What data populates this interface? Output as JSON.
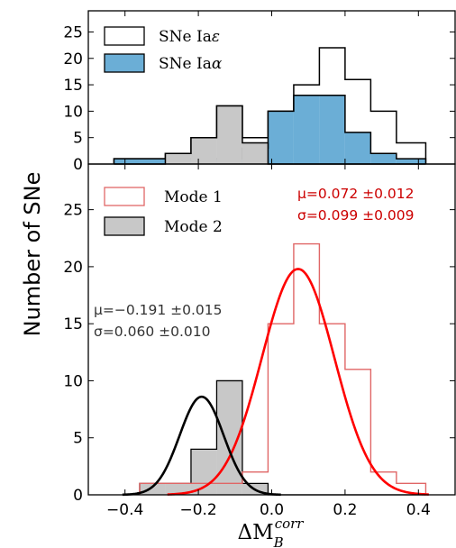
{
  "ylabel": "Number of SNe",
  "xlabel": {
    "delta": "ΔM",
    "subscript": "B",
    "superscript": "corr"
  },
  "colors": {
    "blue_fill": "#6baed6",
    "gray_fill": "#c8c8c8",
    "mode1_step": "#e06666",
    "mode1_gauss": "#ff0000",
    "mode1_text": "#cc0000",
    "mode2_step": "#000000",
    "mode2_gauss": "#000000",
    "mode2_text": "#333333"
  },
  "chart_data": [
    {
      "type": "histogram",
      "panel": "top",
      "x_range": [
        -0.5,
        0.5
      ],
      "y_range": [
        0,
        29
      ],
      "y_ticks": [
        "0",
        "5",
        "10",
        "15",
        "20",
        "25"
      ],
      "bin_edges": [
        -0.43,
        -0.36,
        -0.29,
        -0.22,
        -0.15,
        -0.08,
        -0.01,
        0.06,
        0.13,
        0.2,
        0.27,
        0.34,
        0.42
      ],
      "legend_position": "top-left",
      "legend": [
        {
          "label": "SNe Ia",
          "symbol": "ε",
          "style": "white"
        },
        {
          "label": "SNe Ia",
          "symbol": "α",
          "style": "blue"
        }
      ],
      "series": [
        {
          "name": "SNe Iaε",
          "style": "outline",
          "values": [
            1,
            1,
            2,
            5,
            11,
            5,
            10,
            15,
            22,
            16,
            10,
            4
          ]
        },
        {
          "name": "SNe Iaα",
          "style": "blue",
          "values": [
            1,
            1,
            1,
            1,
            1,
            3,
            10,
            13,
            13,
            6,
            2,
            1
          ]
        },
        {
          "name": "gray",
          "style": "gray",
          "values": [
            0,
            0,
            2,
            5,
            11,
            4,
            0,
            0,
            0,
            0,
            0,
            0
          ]
        }
      ]
    },
    {
      "type": "histogram",
      "panel": "bottom",
      "x_range": [
        -0.5,
        0.5
      ],
      "y_range": [
        0,
        29
      ],
      "x_ticks": [
        "−0.4",
        "−0.2",
        "0.0",
        "0.2",
        "0.4"
      ],
      "x_tick_values": [
        -0.4,
        -0.2,
        0.0,
        0.2,
        0.4
      ],
      "y_ticks": [
        "0",
        "5",
        "10",
        "15",
        "20",
        "25"
      ],
      "legend_position": "top-left",
      "legend": [
        {
          "label": "Mode 1",
          "style": "red-outline"
        },
        {
          "label": "Mode 2",
          "style": "gray"
        }
      ],
      "series": [
        {
          "name": "Mode 1",
          "style": "red-step",
          "bin_edges": [
            -0.36,
            -0.29,
            -0.22,
            -0.15,
            -0.08,
            -0.01,
            0.06,
            0.13,
            0.2,
            0.27,
            0.34,
            0.42
          ],
          "values": [
            1,
            1,
            1,
            1,
            2,
            15,
            22,
            15,
            11,
            2,
            1
          ]
        },
        {
          "name": "Mode 2",
          "style": "gray-step",
          "bin_edges": [
            -0.36,
            -0.29,
            -0.22,
            -0.15,
            -0.08,
            -0.01,
            0.06,
            0.13,
            0.2,
            0.27,
            0.34,
            0.42
          ],
          "values": [
            1,
            1,
            4,
            10,
            1,
            0,
            0,
            0,
            0,
            0,
            0
          ]
        }
      ],
      "fits": [
        {
          "name": "Mode 1",
          "mu": 0.072,
          "sigma": 0.099,
          "peak": 19.8,
          "mu_text": "μ=0.072 ±0.012",
          "sigma_text": "σ=0.099 ±0.009"
        },
        {
          "name": "Mode 2",
          "mu": -0.191,
          "sigma": 0.06,
          "peak": 8.6,
          "mu_text": "μ=−0.191 ±0.015",
          "sigma_text": "σ=0.060 ±0.010"
        }
      ]
    }
  ]
}
